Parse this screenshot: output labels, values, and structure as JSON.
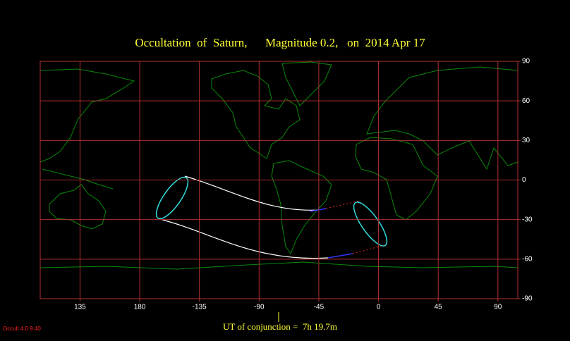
{
  "chart_data": {
    "type": "map",
    "title": "Occultation  of  Saturn,      Magnitude 0.2,   on  2014 Apr 17",
    "xlim": [
      -255,
      105
    ],
    "xticks": [
      {
        "value": -225,
        "label": "135"
      },
      {
        "value": -180,
        "label": "180"
      },
      -135,
      -90,
      -45,
      0,
      45,
      90
    ],
    "ylim": [
      -90,
      90
    ],
    "yticks": [
      90,
      60,
      30,
      0,
      -30,
      -60,
      -90
    ],
    "grid": true,
    "footer": "UT of conjunction =  7h 19.7m",
    "version": "Occult 4.0.9.40"
  }
}
